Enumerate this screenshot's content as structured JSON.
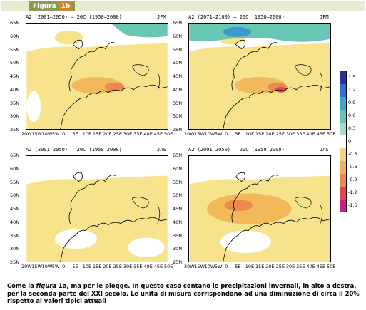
{
  "figure": {
    "tag": "Figura",
    "number": "1b"
  },
  "panels": [
    {
      "title": "A2 (2001–2050) – 20C (1950–2000)",
      "season": "JFM"
    },
    {
      "title": "A2 (2071–2100) – 20C (1950–2000)",
      "season": "JFM"
    },
    {
      "title": "A2 (2001–2050) – 20C (1950–2000)",
      "season": "JAS"
    },
    {
      "title": "A2 (2001–2050) – 20C (1950–2000)",
      "season": "JAS"
    }
  ],
  "lat_ticks": [
    "65N",
    "60N",
    "55N",
    "50N",
    "45N",
    "40N",
    "35N",
    "30N",
    "25N"
  ],
  "lon_ticks": [
    "20W",
    "15W",
    "10W",
    "5W",
    "0",
    "5E",
    "10E",
    "15E",
    "20E",
    "25E",
    "30E",
    "35E",
    "40E",
    "45E",
    "50E"
  ],
  "colorbar": {
    "labels": [
      "1.5",
      "1.2",
      "0.9",
      "0.6",
      "0.3",
      "0",
      "-0.3",
      "-0.6",
      "-0.9",
      "-1.2",
      "-1.5"
    ],
    "colors": [
      "#2a2e9a",
      "#2f6fd0",
      "#3aa6c8",
      "#63c6b8",
      "#a6dcc8",
      "#ffffff",
      "#f2d27a",
      "#f0b25a",
      "#ea8a50",
      "#e0484a",
      "#c81e8c"
    ]
  },
  "colors": {
    "frame": "#a7b77a",
    "ocean": "#ffffff",
    "pale_yellow": "#f7e38c",
    "orange": "#f1b95a",
    "deep_orange": "#ea8a50",
    "red": "#e0484a",
    "teal": "#68c6b4",
    "blue": "#3a9ad0"
  },
  "caption": {
    "prefix": "Come la ",
    "italic": "figura",
    "rest": " 1a, ma per le piogge. In questo caso contano le precipitazioni invernali, in alto a destra, per la seconda parte del XXI secolo. Le unità di misura corrispondono ad una diminuzione di circa il 20% rispetto ai valori tipici attuali"
  }
}
